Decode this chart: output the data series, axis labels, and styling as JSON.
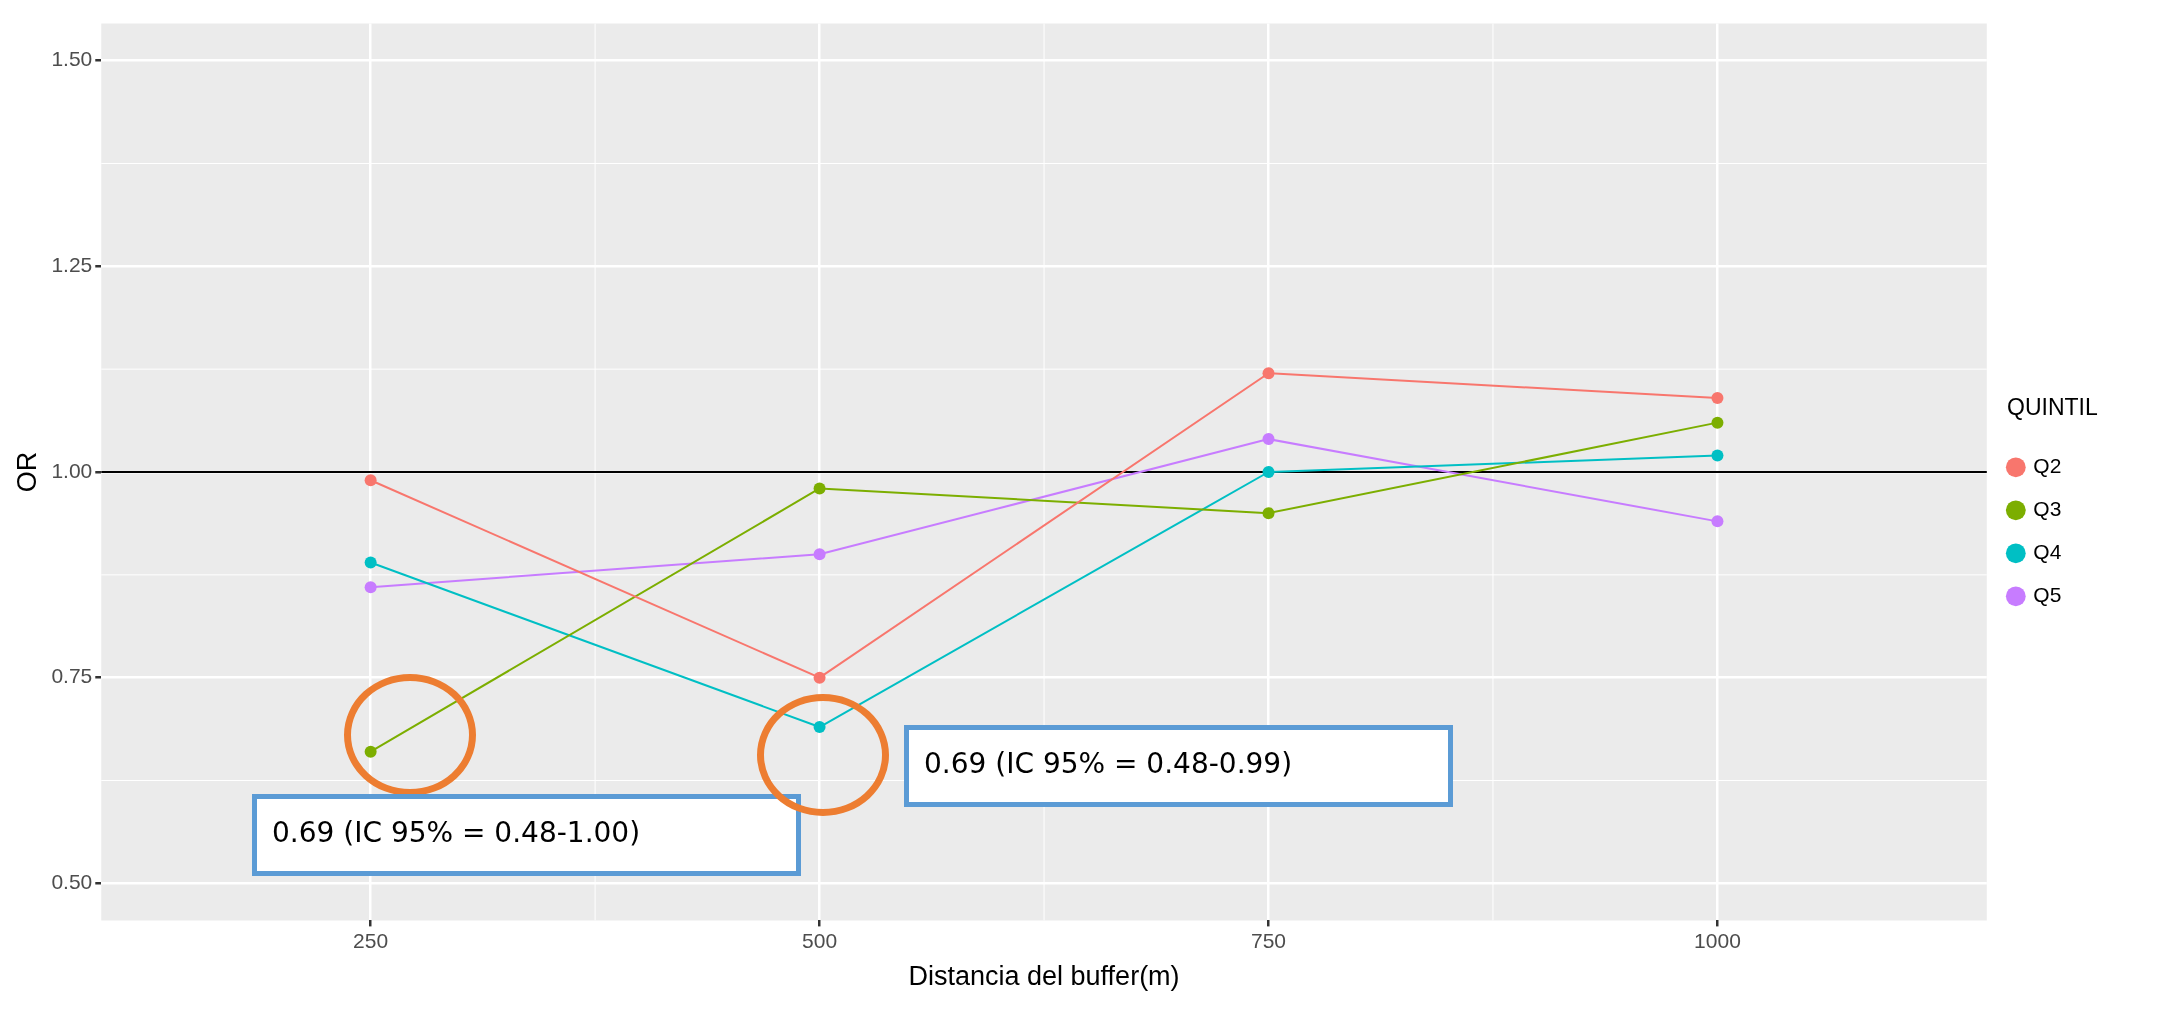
{
  "chart_data": {
    "type": "line",
    "xlabel": "Distancia del buffer(m)",
    "ylabel": "OR",
    "legend_title": "QUINTIL",
    "x": [
      250,
      500,
      750,
      1000
    ],
    "series": [
      {
        "name": "Q2",
        "color": "#f8766d",
        "values": [
          0.99,
          0.75,
          1.12,
          1.09
        ]
      },
      {
        "name": "Q3",
        "color": "#7cae00",
        "values": [
          0.66,
          0.98,
          0.95,
          1.06
        ]
      },
      {
        "name": "Q4",
        "color": "#00bfc4",
        "values": [
          0.89,
          0.69,
          1.0,
          1.02
        ]
      },
      {
        "name": "Q5",
        "color": "#c77cff",
        "values": [
          0.86,
          0.9,
          1.04,
          0.94
        ]
      }
    ],
    "xlim": [
      100,
      1150
    ],
    "xticks": [
      250,
      500,
      750,
      1000
    ],
    "ylim": [
      0.455,
      1.545
    ],
    "yticks": [
      {
        "value": 0.5,
        "label": "0.50"
      },
      {
        "value": 0.75,
        "label": "0.75"
      },
      {
        "value": 1.0,
        "label": "1.00"
      },
      {
        "value": 1.25,
        "label": "1.25"
      },
      {
        "value": 1.5,
        "label": "1.50"
      }
    ],
    "ref_lines": [
      {
        "axis": "y",
        "value": 1.0,
        "color": "#000000"
      }
    ],
    "annotations": [
      "0.69 (IC 95% = 0.48-1.00)",
      "0.69 (IC 95% = 0.48-0.99)"
    ],
    "grid": true,
    "legend": "right",
    "marker": "circle",
    "line_style": "solid"
  }
}
